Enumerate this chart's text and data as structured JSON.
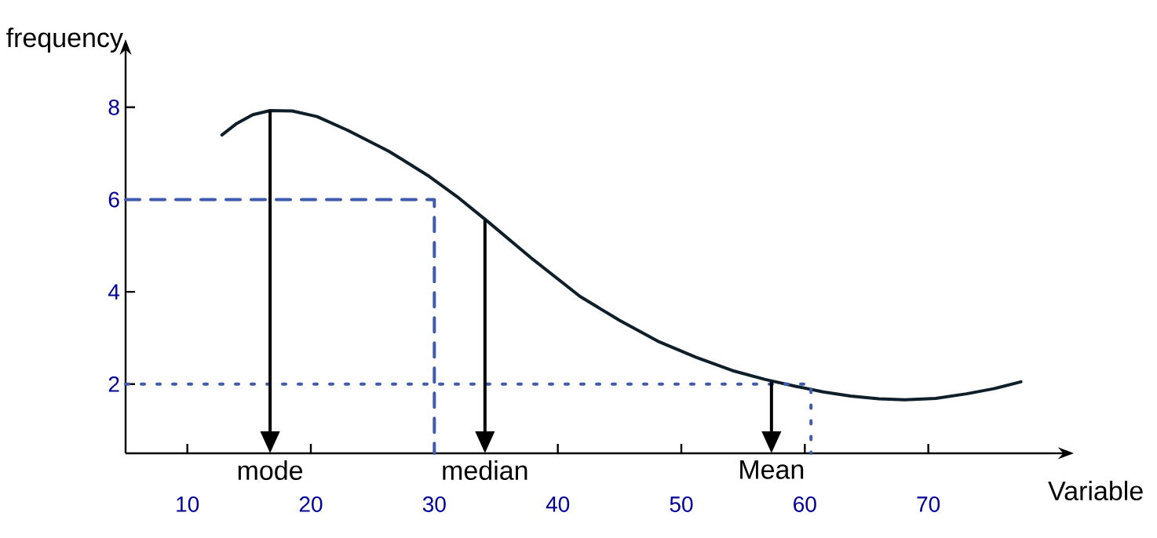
{
  "chart_data": {
    "type": "line",
    "xlabel": "Variable",
    "ylabel": "frequency",
    "xlim": [
      5,
      80
    ],
    "ylim": [
      0.5,
      9
    ],
    "xticks": [
      10,
      20,
      30,
      40,
      50,
      60,
      70
    ],
    "yticks": [
      2,
      4,
      6,
      8
    ],
    "marker": "none",
    "series": [
      {
        "color": "#0f1f2a",
        "line_style": "solid",
        "x": [
          12.8,
          14,
          15.3,
          16.7,
          18.5,
          20.5,
          23,
          26.3,
          29.6,
          32,
          34.3,
          38,
          41.8,
          45,
          48.1,
          51.2,
          54.3,
          56.8,
          59.3,
          61.5,
          63.7,
          66,
          68.1,
          70.6,
          73.1,
          75.3,
          77.5
        ],
        "values": [
          7.4,
          7.65,
          7.84,
          7.93,
          7.92,
          7.8,
          7.5,
          7.05,
          6.5,
          6.03,
          5.53,
          4.7,
          3.9,
          3.38,
          2.93,
          2.58,
          2.28,
          2.1,
          1.95,
          1.83,
          1.74,
          1.68,
          1.66,
          1.69,
          1.79,
          1.9,
          2.05
        ]
      },
      {
        "color": "#3f5bab",
        "line_style": "dashed",
        "x": [
          5,
          30,
          30
        ],
        "values": [
          6,
          6,
          0.5
        ]
      },
      {
        "color": "#3f5bab",
        "line_style": "dotted",
        "x": [
          5,
          60.5,
          60.5
        ],
        "values": [
          2,
          2,
          0.5
        ]
      }
    ],
    "annotations": [
      {
        "text": "mode",
        "x": 16.7,
        "y": 7.93
      },
      {
        "text": "median",
        "x": 34.1,
        "y": 5.55
      },
      {
        "text": "Mean",
        "x": 57.3,
        "y": 2.05
      }
    ]
  }
}
